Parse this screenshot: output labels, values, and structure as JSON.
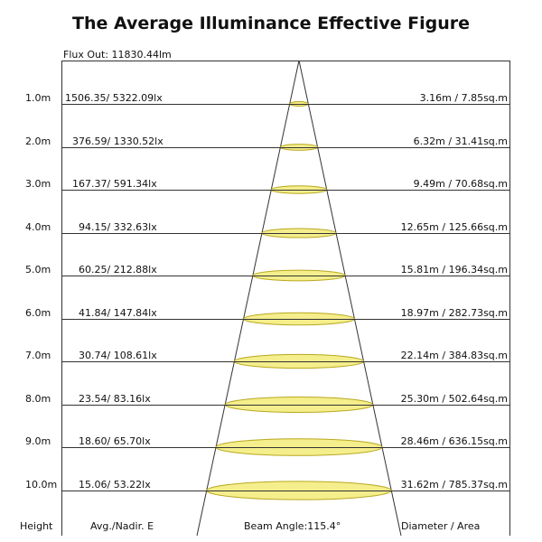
{
  "title": "The Average Illuminance Effective Figure",
  "flux_out": "Flux Out: 11830.44lm",
  "rows": [
    {
      "height": "1.0m",
      "lux": "1506.35/ 5322.09lx",
      "area": "3.16m / 7.85sq.m"
    },
    {
      "height": "2.0m",
      "lux": "376.59/ 1330.52lx",
      "area": "6.32m / 31.41sq.m"
    },
    {
      "height": "3.0m",
      "lux": "167.37/ 591.34lx",
      "area": "9.49m / 70.68sq.m"
    },
    {
      "height": "4.0m",
      "lux": "94.15/ 332.63lx",
      "area": "12.65m / 125.66sq.m"
    },
    {
      "height": "5.0m",
      "lux": "60.25/ 212.88lx",
      "area": "15.81m / 196.34sq.m"
    },
    {
      "height": "6.0m",
      "lux": "41.84/ 147.84lx",
      "area": "18.97m / 282.73sq.m"
    },
    {
      "height": "7.0m",
      "lux": "30.74/ 108.61lx",
      "area": "22.14m / 384.83sq.m"
    },
    {
      "height": "8.0m",
      "lux": "23.54/ 83.16lx",
      "area": "25.30m / 502.64sq.m"
    },
    {
      "height": "9.0m",
      "lux": "18.60/ 65.70lx",
      "area": "28.46m / 636.15sq.m"
    },
    {
      "height": "10.0m",
      "lux": "15.06/ 53.22lx",
      "area": "31.62m / 785.37sq.m"
    }
  ],
  "footer": {
    "height": "Height",
    "avg": "Avg./Nadir. E",
    "beam": "Beam Angle:115.4°",
    "diameter": "Diameter / Area"
  },
  "colors": {
    "ellipse_fill": "#f5ee8c",
    "ellipse_stroke": "#b8a820",
    "line": "#333333"
  }
}
